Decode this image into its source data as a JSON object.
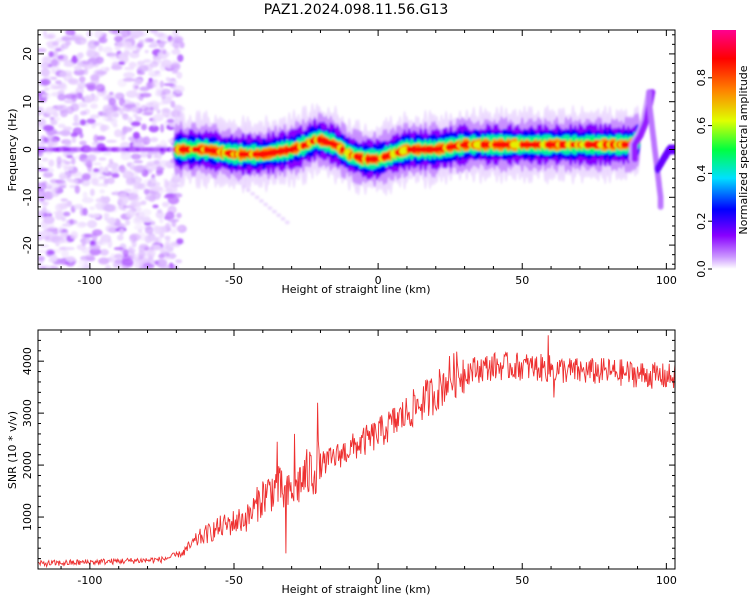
{
  "title": "PAZ1.2024.098.11.56.G13",
  "chart_data": [
    {
      "type": "heatmap",
      "xlabel": "Height of straight line (km)",
      "ylabel": "Frequency (Hz)",
      "xlim": [
        -118,
        103
      ],
      "ylim": [
        -25,
        25
      ],
      "xticks": [
        -100,
        -50,
        0,
        50,
        100
      ],
      "yticks": [
        -20,
        -10,
        0,
        10,
        20
      ],
      "colorbar": {
        "label": "Normalized spectral amplitude",
        "ticks": [
          "0.0",
          "0.2",
          "0.4",
          "0.6",
          "0.8"
        ],
        "range": [
          0,
          1
        ],
        "colormap": [
          "#ffffff",
          "#cc99ff",
          "#8800ff",
          "#0000ff",
          "#00e0ff",
          "#00ff40",
          "#e0ff00",
          "#ff8000",
          "#ff0000",
          "#ff0090"
        ]
      },
      "ridge": {
        "x": [
          -70,
          -60,
          -50,
          -40,
          -30,
          -25,
          -22,
          -20,
          -15,
          -10,
          -5,
          0,
          10,
          20,
          30,
          40,
          50,
          60,
          70,
          80,
          88,
          92,
          96,
          98,
          101,
          103
        ],
        "y": [
          0,
          0,
          -1,
          -1,
          0,
          1,
          2,
          2,
          1,
          -1,
          -2,
          -2,
          0,
          0,
          1,
          1,
          1,
          1,
          1,
          1,
          1,
          3,
          9,
          0,
          -2,
          0
        ]
      },
      "secondary_track": {
        "x": [
          94,
          95,
          96,
          97,
          98
        ],
        "y": [
          10,
          5,
          0,
          -5,
          -10
        ]
      }
    },
    {
      "type": "line",
      "xlabel": "Height of straight line (km)",
      "ylabel": "SNR (10 * v/v)",
      "xlim": [
        -118,
        103
      ],
      "ylim": [
        0,
        4600
      ],
      "xticks": [
        -100,
        -50,
        0,
        50,
        100
      ],
      "yticks": [
        1000,
        2000,
        3000,
        4000
      ],
      "color": "#ee3030",
      "trend": {
        "x": [
          -118,
          -90,
          -75,
          -68,
          -62,
          -55,
          -45,
          -40,
          -35,
          -32,
          -30,
          -25,
          -20,
          -10,
          0,
          10,
          20,
          25,
          30,
          40,
          50,
          60,
          70,
          80,
          90,
          100,
          103
        ],
        "y": [
          100,
          150,
          180,
          300,
          600,
          800,
          1000,
          1400,
          1600,
          1400,
          1500,
          1800,
          2000,
          2300,
          2600,
          3000,
          3400,
          3700,
          3800,
          3900,
          3900,
          3850,
          3800,
          3800,
          3750,
          3700,
          3700
        ]
      },
      "features": [
        {
          "x": -35,
          "y": 2450
        },
        {
          "x": -32,
          "y": 300
        },
        {
          "x": -29,
          "y": 2600
        },
        {
          "x": -21,
          "y": 3200
        },
        {
          "x": 59,
          "y": 4500
        },
        {
          "x": 61,
          "y": 3300
        }
      ]
    }
  ]
}
